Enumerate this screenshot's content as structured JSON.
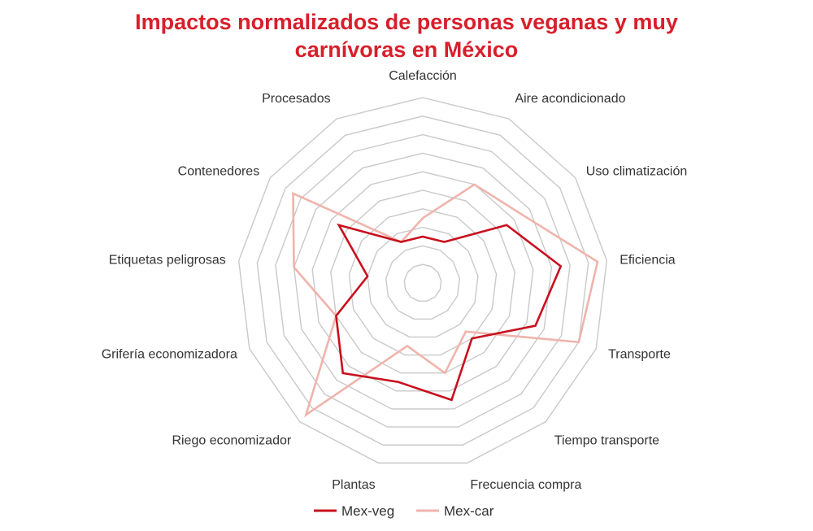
{
  "chart_data": {
    "type": "radar",
    "title_line1": "Impactos normalizados de personas veganas y muy",
    "title_line2": "carnívoras en México",
    "axes": [
      "Calefacción",
      "Aire acondicionado",
      "Uso climatización",
      "Eficiencia",
      "Transporte",
      "Tiempo transporte",
      "Frecuencia compra",
      "Plantas",
      "Riego economizador",
      "Grifería economizadora",
      "Etiquetas peligrosas",
      "Contenedores",
      "Procesados"
    ],
    "rlim": [
      0,
      1
    ],
    "grid_rings": 10,
    "grid": true,
    "legend_position": "bottom",
    "series": [
      {
        "name": "Mex-veg",
        "color": "#c8101e",
        "values": [
          0.25,
          0.25,
          0.55,
          0.75,
          0.65,
          0.4,
          0.65,
          0.55,
          0.65,
          0.5,
          0.3,
          0.55,
          0.25
        ]
      },
      {
        "name": "Mex-car",
        "color": "#efb4ac",
        "values": [
          0.35,
          0.6,
          0.65,
          0.95,
          0.9,
          0.35,
          0.5,
          0.35,
          0.95,
          0.5,
          0.7,
          0.85,
          0.25
        ]
      }
    ]
  }
}
